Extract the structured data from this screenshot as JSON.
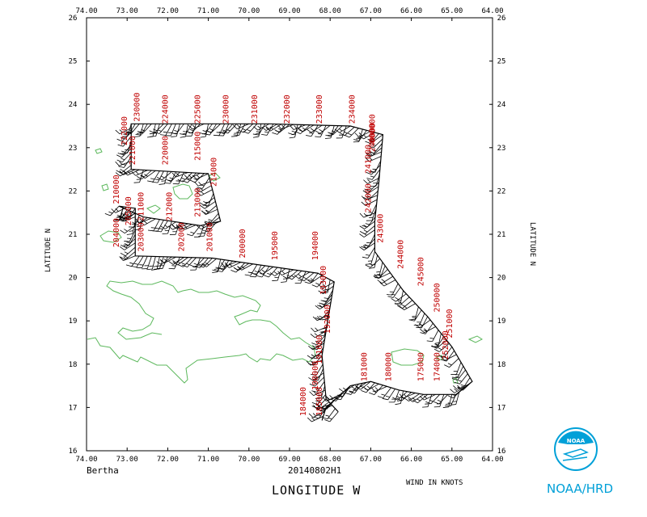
{
  "storm_name": "Bertha",
  "flight_id": "20140802H1",
  "x_axis_title": "LONGITUDE   W",
  "y_axis_title": "LATITUDE   N",
  "wind_units": "WIND IN KNOTS",
  "agency": "NOAA/HRD",
  "lon_ticks": [
    "74.00",
    "73.00",
    "72.00",
    "71.00",
    "70.00",
    "69.00",
    "68.00",
    "67.00",
    "66.00",
    "65.00",
    "64.00"
  ],
  "lat_ticks": [
    "16",
    "17",
    "18",
    "19",
    "20",
    "21",
    "22",
    "23",
    "24",
    "25",
    "26"
  ],
  "colors": {
    "coast": "#5cb85c",
    "time_labels": "#c00000",
    "frame": "#000000",
    "logo": "#00a0d8"
  },
  "chart_data": {
    "type": "map",
    "x_axis": {
      "label": "LONGITUDE W",
      "range": [
        74,
        64
      ],
      "reversed": true
    },
    "y_axis": {
      "label": "LATITUDE N",
      "range": [
        16,
        26
      ]
    },
    "flight_track": [
      {
        "lon": 67.8,
        "lat": 16.9
      },
      {
        "lon": 68.1,
        "lat": 17.2
      },
      {
        "lon": 68.2,
        "lat": 18.2
      },
      {
        "lon": 67.9,
        "lat": 19.9
      },
      {
        "lon": 68.3,
        "lat": 20.1
      },
      {
        "lon": 69.8,
        "lat": 20.3
      },
      {
        "lon": 70.9,
        "lat": 20.45
      },
      {
        "lon": 72.8,
        "lat": 20.5
      },
      {
        "lon": 72.8,
        "lat": 21.6
      },
      {
        "lon": 73.2,
        "lat": 21.65
      },
      {
        "lon": 72.6,
        "lat": 21.4
      },
      {
        "lon": 71.2,
        "lat": 21.2
      },
      {
        "lon": 70.7,
        "lat": 21.3
      },
      {
        "lon": 71.0,
        "lat": 22.4
      },
      {
        "lon": 72.9,
        "lat": 22.5
      },
      {
        "lon": 72.9,
        "lat": 23.55
      },
      {
        "lon": 71.5,
        "lat": 23.55
      },
      {
        "lon": 69.5,
        "lat": 23.55
      },
      {
        "lon": 67.5,
        "lat": 23.5
      },
      {
        "lon": 66.7,
        "lat": 23.3
      },
      {
        "lon": 66.8,
        "lat": 22.2
      },
      {
        "lon": 66.9,
        "lat": 21.3
      },
      {
        "lon": 66.9,
        "lat": 20.6
      },
      {
        "lon": 66.2,
        "lat": 19.7
      },
      {
        "lon": 65.6,
        "lat": 19.1
      },
      {
        "lon": 65.0,
        "lat": 18.4
      },
      {
        "lon": 64.5,
        "lat": 17.6
      },
      {
        "lon": 64.9,
        "lat": 17.3
      },
      {
        "lon": 65.7,
        "lat": 17.3
      },
      {
        "lon": 66.3,
        "lat": 17.4
      },
      {
        "lon": 67.0,
        "lat": 17.6
      },
      {
        "lon": 67.5,
        "lat": 17.5
      },
      {
        "lon": 68.1,
        "lat": 17.0
      },
      {
        "lon": 68.2,
        "lat": 16.7
      }
    ],
    "time_labels": [
      {
        "text": "230000",
        "lon": 72.7,
        "lat": 23.6
      },
      {
        "text": "222000",
        "lon": 73.0,
        "lat": 23.05
      },
      {
        "text": "224000",
        "lon": 72.0,
        "lat": 23.55
      },
      {
        "text": "225000",
        "lon": 71.2,
        "lat": 23.55
      },
      {
        "text": "230000",
        "lon": 70.5,
        "lat": 23.55
      },
      {
        "text": "231000",
        "lon": 69.8,
        "lat": 23.55
      },
      {
        "text": "232000",
        "lon": 69.0,
        "lat": 23.55
      },
      {
        "text": "233000",
        "lon": 68.2,
        "lat": 23.55
      },
      {
        "text": "234000",
        "lon": 67.4,
        "lat": 23.55
      },
      {
        "text": "000000",
        "lon": 66.9,
        "lat": 23.1
      },
      {
        "text": "221000",
        "lon": 72.8,
        "lat": 22.6
      },
      {
        "text": "220000",
        "lon": 72.0,
        "lat": 22.6
      },
      {
        "text": "215000",
        "lon": 71.2,
        "lat": 22.7
      },
      {
        "text": "214000",
        "lon": 70.8,
        "lat": 22.1
      },
      {
        "text": "213000",
        "lon": 71.2,
        "lat": 21.4
      },
      {
        "text": "212000",
        "lon": 71.9,
        "lat": 21.3
      },
      {
        "text": "211000",
        "lon": 72.6,
        "lat": 21.3
      },
      {
        "text": "210000",
        "lon": 73.2,
        "lat": 21.7
      },
      {
        "text": "205000",
        "lon": 72.9,
        "lat": 21.2
      },
      {
        "text": "204000",
        "lon": 73.2,
        "lat": 20.7
      },
      {
        "text": "203000",
        "lon": 72.6,
        "lat": 20.6
      },
      {
        "text": "202000",
        "lon": 71.6,
        "lat": 20.6
      },
      {
        "text": "201000",
        "lon": 70.9,
        "lat": 20.6
      },
      {
        "text": "200000",
        "lon": 70.1,
        "lat": 20.45
      },
      {
        "text": "195000",
        "lon": 69.3,
        "lat": 20.4
      },
      {
        "text": "194000",
        "lon": 68.3,
        "lat": 20.4
      },
      {
        "text": "193000",
        "lon": 68.1,
        "lat": 19.6
      },
      {
        "text": "192000",
        "lon": 68.0,
        "lat": 18.7
      },
      {
        "text": "191000",
        "lon": 68.2,
        "lat": 18.0
      },
      {
        "text": "190000",
        "lon": 68.3,
        "lat": 17.4
      },
      {
        "text": "184000",
        "lon": 68.6,
        "lat": 16.8
      },
      {
        "text": "185000",
        "lon": 68.2,
        "lat": 16.8
      },
      {
        "text": "181000",
        "lon": 67.1,
        "lat": 17.6
      },
      {
        "text": "180000",
        "lon": 66.5,
        "lat": 17.6
      },
      {
        "text": "175000",
        "lon": 65.7,
        "lat": 17.6
      },
      {
        "text": "174000",
        "lon": 65.3,
        "lat": 17.6
      },
      {
        "text": "241000",
        "lon": 67.0,
        "lat": 22.4
      },
      {
        "text": "240000",
        "lon": 66.9,
        "lat": 22.9
      },
      {
        "text": "242000",
        "lon": 67.0,
        "lat": 21.5
      },
      {
        "text": "243000",
        "lon": 66.7,
        "lat": 20.8
      },
      {
        "text": "244000",
        "lon": 66.2,
        "lat": 20.2
      },
      {
        "text": "245000",
        "lon": 65.7,
        "lat": 19.8
      },
      {
        "text": "250000",
        "lon": 65.3,
        "lat": 19.2
      },
      {
        "text": "251000",
        "lon": 65.0,
        "lat": 18.6
      },
      {
        "text": "252000",
        "lon": 65.1,
        "lat": 18.1
      }
    ]
  }
}
